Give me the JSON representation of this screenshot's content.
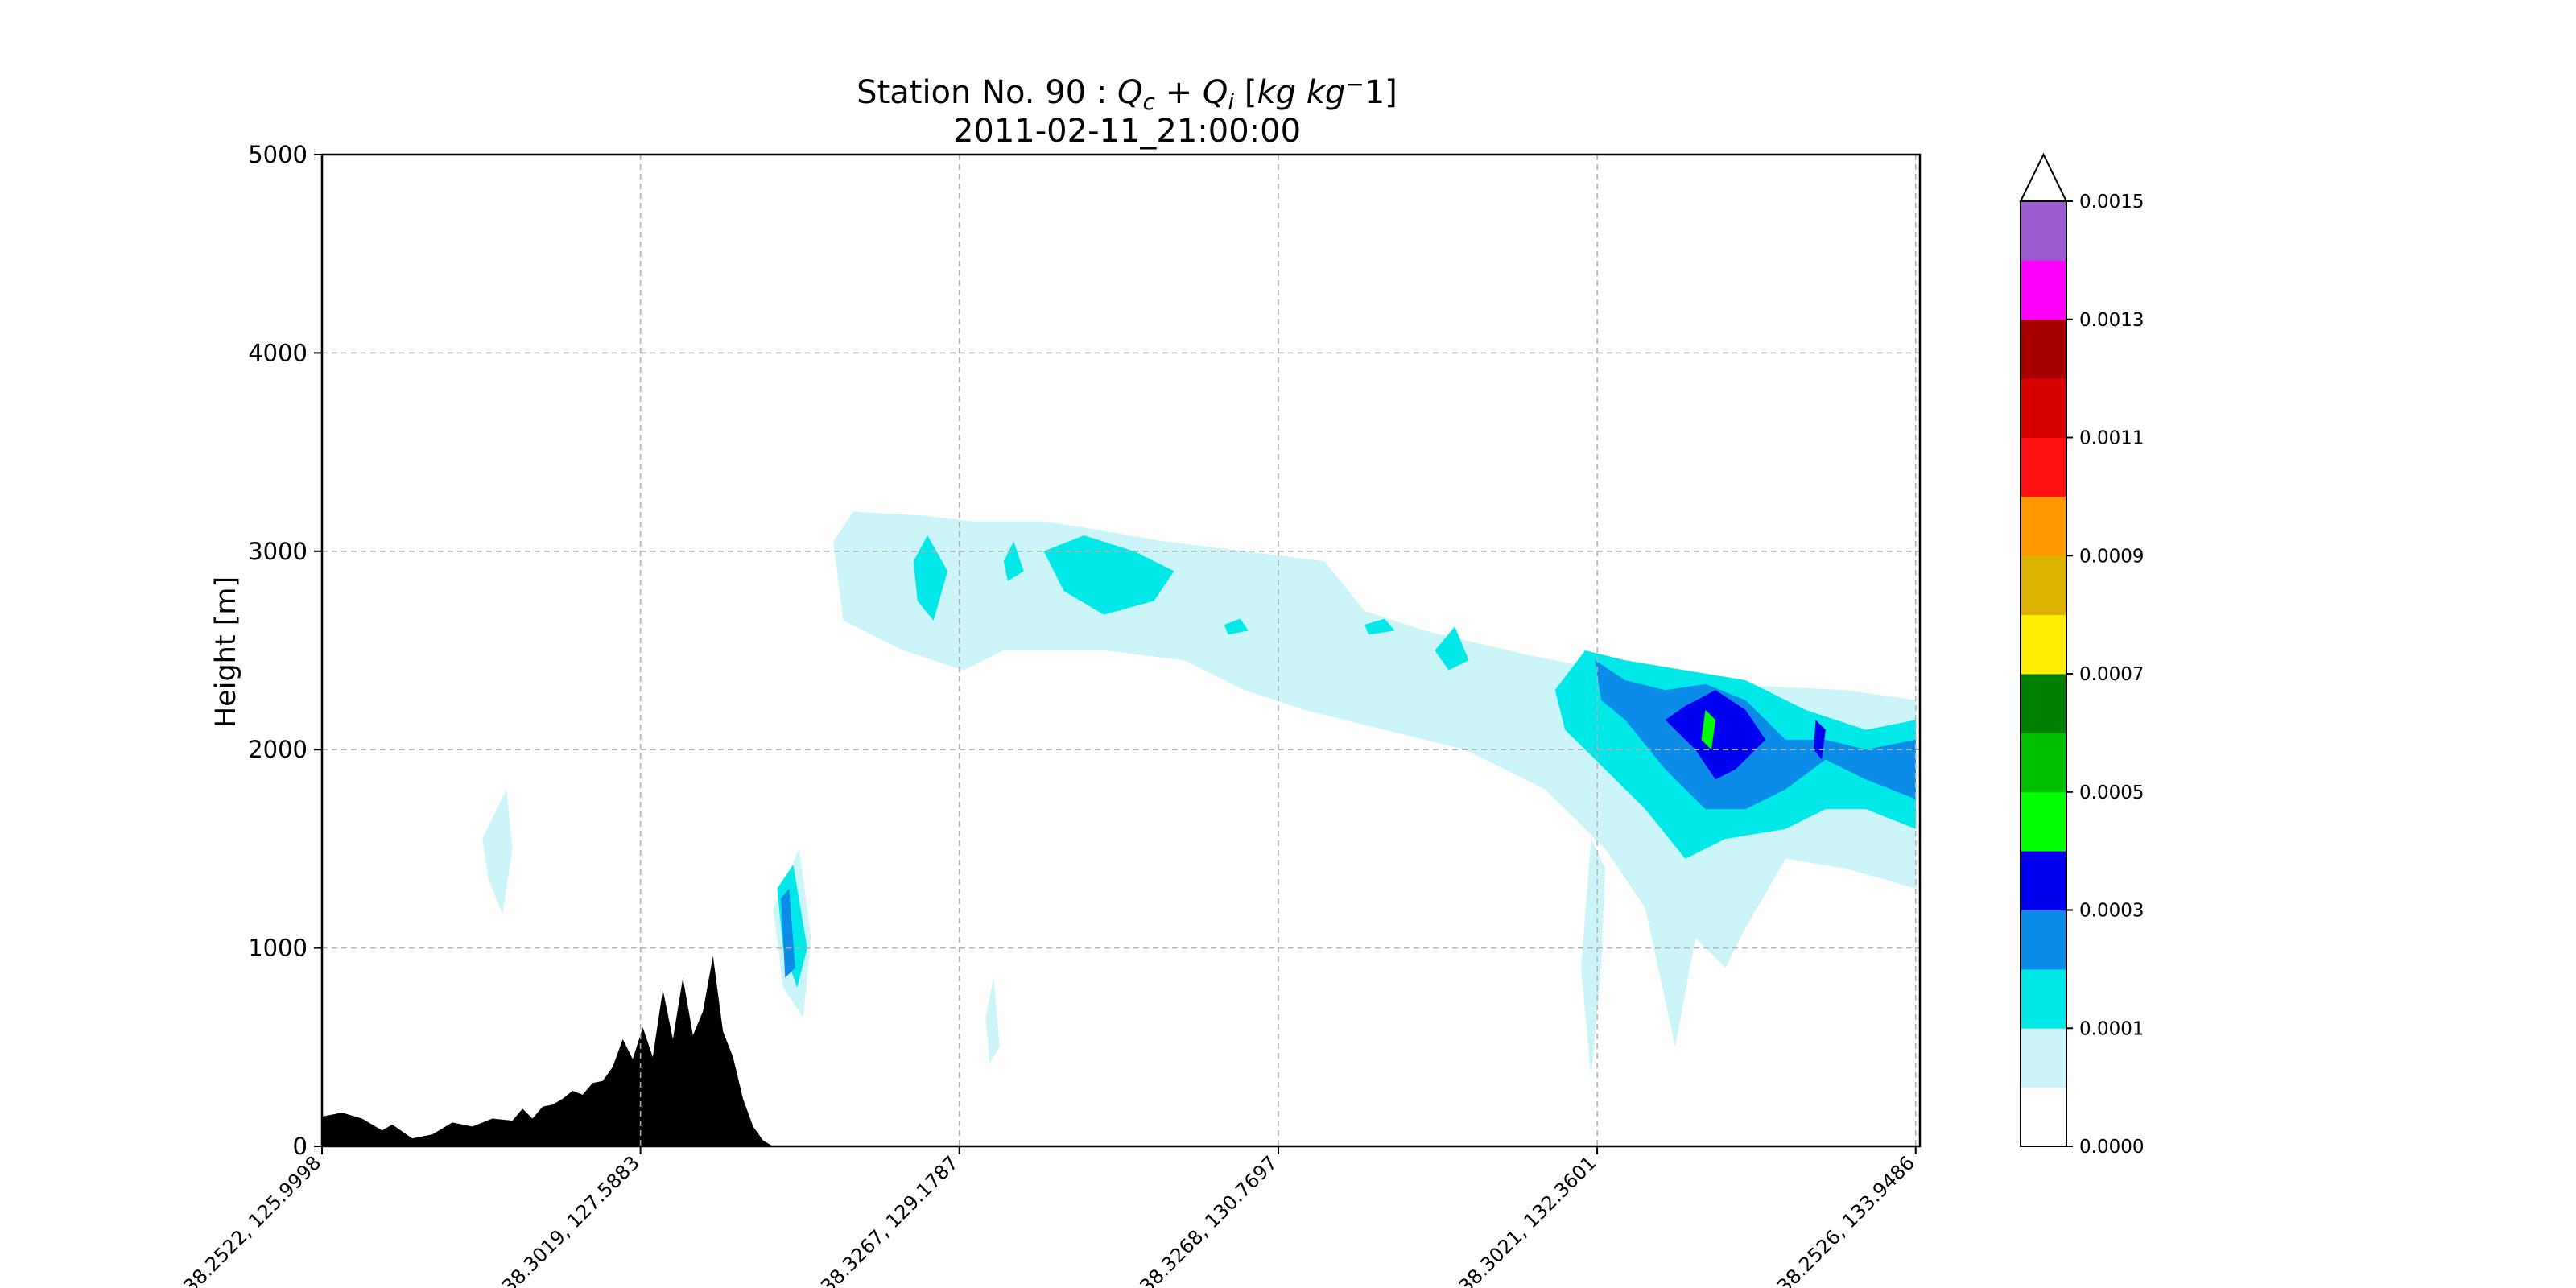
{
  "chart_data": {
    "type": "heatmap",
    "title": "Station No. 90 : Qc + Qi [kg kg⁻1]",
    "title_parts": {
      "prefix": "Station No. 90 : ",
      "q1": "Q",
      "q1_sub": "c",
      "plus": " + ",
      "q2": "Q",
      "q2_sub": "i",
      "units_open": " [",
      "units": "kg kg",
      "units_sup": "−",
      "units_close": "1]"
    },
    "subtitle": "2011-02-11_21:00:00",
    "ylabel": "Height [m]",
    "xlabel": "",
    "ylim": [
      0,
      5000
    ],
    "yticks": [
      "0",
      "1000",
      "2000",
      "3000",
      "4000",
      "5000"
    ],
    "xticks": [
      "38.2522, 125.9998",
      "38.3019, 127.5883",
      "38.3267, 129.1787",
      "38.3268, 130.7697",
      "38.3021, 132.3601",
      "38.2526, 133.9486"
    ],
    "xtick_positions": [
      0,
      1.5885,
      3.1789,
      4.7699,
      6.3603,
      7.9488
    ],
    "xlim": [
      0,
      7.97
    ],
    "grid": true,
    "colorbar": {
      "levels": [
        "0.0000",
        "0.0001",
        "0.0003",
        "0.0005",
        "0.0007",
        "0.0009",
        "0.0011",
        "0.0013",
        "0.0015"
      ],
      "level_values": [
        0,
        0.0001,
        0.0003,
        0.0005,
        0.0007,
        0.0009,
        0.0011,
        0.0013,
        0.0015
      ],
      "colors": [
        "#ffffff",
        "#ccf5fa",
        "#00e8e8",
        "#0a8ce8",
        "#0000f0",
        "#00ff00",
        "#00c000",
        "#008000",
        "#ffee00",
        "#dcb200",
        "#ff9900",
        "#ff1010",
        "#d80000",
        "#a80000",
        "#ff00ff",
        "#9a5ad0"
      ],
      "extend": "max"
    },
    "terrain": {
      "color": "#000000",
      "x": [
        0,
        0.1,
        0.2,
        0.3,
        0.35,
        0.45,
        0.55,
        0.65,
        0.75,
        0.85,
        0.95,
        1.0,
        1.05,
        1.1,
        1.15,
        1.2,
        1.25,
        1.3,
        1.35,
        1.4,
        1.45,
        1.5,
        1.55,
        1.6,
        1.65,
        1.7,
        1.75,
        1.8,
        1.85,
        1.9,
        1.95,
        2.0,
        2.05,
        2.1,
        2.15,
        2.2,
        2.25,
        2.3,
        2.35,
        2.4,
        2.45,
        2.5,
        2.55
      ],
      "y": [
        150,
        170,
        140,
        80,
        110,
        40,
        60,
        120,
        100,
        140,
        130,
        190,
        140,
        200,
        210,
        240,
        280,
        260,
        320,
        330,
        400,
        540,
        440,
        600,
        450,
        790,
        540,
        850,
        560,
        680,
        960,
        580,
        450,
        240,
        100,
        30,
        0,
        0,
        0,
        0,
        0,
        0,
        0
      ]
    },
    "regions": [
      {
        "level": 1,
        "value": 5e-05,
        "points": [
          [
            0.8,
            1550
          ],
          [
            0.92,
            1800
          ],
          [
            0.95,
            1500
          ],
          [
            0.9,
            1170
          ],
          [
            0.83,
            1350
          ]
        ]
      },
      {
        "level": 1,
        "value": 5e-05,
        "points": [
          [
            2.55,
            3050
          ],
          [
            2.65,
            3200
          ],
          [
            3.0,
            3180
          ],
          [
            3.25,
            3150
          ],
          [
            3.6,
            3150
          ],
          [
            3.8,
            3120
          ],
          [
            4.2,
            3050
          ],
          [
            4.6,
            3000
          ],
          [
            5.0,
            2950
          ],
          [
            5.2,
            2700
          ],
          [
            5.5,
            2600
          ],
          [
            6.0,
            2480
          ],
          [
            6.4,
            2400
          ],
          [
            6.8,
            2350
          ],
          [
            7.2,
            2320
          ],
          [
            7.6,
            2300
          ],
          [
            7.95,
            2250
          ],
          [
            7.95,
            1300
          ],
          [
            7.6,
            1400
          ],
          [
            7.3,
            1450
          ],
          [
            7.1,
            1100
          ],
          [
            7.0,
            900
          ],
          [
            6.85,
            1050
          ],
          [
            6.75,
            500
          ],
          [
            6.6,
            1200
          ],
          [
            6.4,
            1500
          ],
          [
            6.1,
            1800
          ],
          [
            5.7,
            2000
          ],
          [
            5.3,
            2100
          ],
          [
            4.9,
            2200
          ],
          [
            4.6,
            2300
          ],
          [
            4.3,
            2450
          ],
          [
            3.9,
            2500
          ],
          [
            3.4,
            2500
          ],
          [
            3.2,
            2400
          ],
          [
            2.9,
            2500
          ],
          [
            2.6,
            2650
          ]
        ]
      },
      {
        "level": 1,
        "value": 5e-05,
        "points": [
          [
            2.25,
            1200
          ],
          [
            2.38,
            1500
          ],
          [
            2.44,
            1050
          ],
          [
            2.4,
            650
          ],
          [
            2.3,
            800
          ]
        ]
      },
      {
        "level": 1,
        "value": 5e-05,
        "points": [
          [
            3.35,
            850
          ],
          [
            3.38,
            500
          ],
          [
            3.33,
            420
          ],
          [
            3.31,
            650
          ]
        ]
      },
      {
        "level": 1,
        "value": 5e-05,
        "points": [
          [
            6.33,
            1550
          ],
          [
            6.4,
            1400
          ],
          [
            6.38,
            900
          ],
          [
            6.33,
            350
          ],
          [
            6.28,
            900
          ]
        ]
      },
      {
        "level": 2,
        "value": 0.0002,
        "points": [
          [
            2.95,
            2950
          ],
          [
            3.02,
            3080
          ],
          [
            3.12,
            2900
          ],
          [
            3.05,
            2650
          ],
          [
            2.97,
            2750
          ]
        ]
      },
      {
        "level": 2,
        "value": 0.0002,
        "points": [
          [
            3.4,
            2950
          ],
          [
            3.45,
            3050
          ],
          [
            3.5,
            2900
          ],
          [
            3.42,
            2850
          ]
        ]
      },
      {
        "level": 2,
        "value": 0.0002,
        "points": [
          [
            3.6,
            3000
          ],
          [
            3.8,
            3080
          ],
          [
            4.05,
            3000
          ],
          [
            4.25,
            2900
          ],
          [
            4.15,
            2750
          ],
          [
            3.9,
            2680
          ],
          [
            3.7,
            2800
          ]
        ]
      },
      {
        "level": 2,
        "value": 0.0002,
        "points": [
          [
            4.5,
            2630
          ],
          [
            4.58,
            2660
          ],
          [
            4.62,
            2600
          ],
          [
            4.52,
            2580
          ]
        ]
      },
      {
        "level": 2,
        "value": 0.0002,
        "points": [
          [
            5.2,
            2630
          ],
          [
            5.3,
            2660
          ],
          [
            5.35,
            2600
          ],
          [
            5.22,
            2580
          ]
        ]
      },
      {
        "level": 2,
        "value": 0.0002,
        "points": [
          [
            5.55,
            2500
          ],
          [
            5.65,
            2620
          ],
          [
            5.72,
            2450
          ],
          [
            5.62,
            2400
          ]
        ]
      },
      {
        "level": 2,
        "value": 0.0002,
        "points": [
          [
            6.15,
            2300
          ],
          [
            6.3,
            2500
          ],
          [
            6.5,
            2450
          ],
          [
            6.8,
            2400
          ],
          [
            7.1,
            2350
          ],
          [
            7.4,
            2200
          ],
          [
            7.7,
            2100
          ],
          [
            7.95,
            2150
          ],
          [
            7.95,
            1600
          ],
          [
            7.7,
            1700
          ],
          [
            7.5,
            1700
          ],
          [
            7.3,
            1600
          ],
          [
            7.0,
            1550
          ],
          [
            6.8,
            1450
          ],
          [
            6.6,
            1700
          ],
          [
            6.4,
            1900
          ],
          [
            6.2,
            2100
          ]
        ]
      },
      {
        "level": 2,
        "value": 0.0002,
        "points": [
          [
            2.27,
            1300
          ],
          [
            2.35,
            1420
          ],
          [
            2.42,
            1000
          ],
          [
            2.37,
            800
          ],
          [
            2.3,
            1000
          ]
        ]
      },
      {
        "level": 3,
        "value": 0.0004,
        "points": [
          [
            6.35,
            2450
          ],
          [
            6.5,
            2350
          ],
          [
            6.7,
            2300
          ],
          [
            6.9,
            2330
          ],
          [
            7.1,
            2250
          ],
          [
            7.3,
            2050
          ],
          [
            7.5,
            2050
          ],
          [
            7.7,
            2000
          ],
          [
            7.95,
            2050
          ],
          [
            7.95,
            1750
          ],
          [
            7.7,
            1850
          ],
          [
            7.5,
            1950
          ],
          [
            7.3,
            1800
          ],
          [
            7.1,
            1700
          ],
          [
            6.9,
            1700
          ],
          [
            6.7,
            1900
          ],
          [
            6.5,
            2150
          ],
          [
            6.38,
            2250
          ]
        ]
      },
      {
        "level": 3,
        "value": 0.0004,
        "points": [
          [
            2.29,
            1250
          ],
          [
            2.33,
            1300
          ],
          [
            2.36,
            900
          ],
          [
            2.31,
            850
          ]
        ]
      },
      {
        "level": 4,
        "value": 0.0006,
        "points": [
          [
            6.8,
            2220
          ],
          [
            6.95,
            2300
          ],
          [
            7.1,
            2200
          ],
          [
            7.2,
            2050
          ],
          [
            7.05,
            1900
          ],
          [
            6.95,
            1850
          ],
          [
            6.85,
            2000
          ],
          [
            6.7,
            2150
          ]
        ]
      },
      {
        "level": 4,
        "value": 0.0006,
        "points": [
          [
            7.45,
            2150
          ],
          [
            7.5,
            2100
          ],
          [
            7.48,
            1950
          ],
          [
            7.44,
            2000
          ]
        ]
      },
      {
        "level": 5,
        "value": 0.0008,
        "points": [
          [
            6.9,
            2200
          ],
          [
            6.95,
            2150
          ],
          [
            6.93,
            2000
          ],
          [
            6.88,
            2050
          ]
        ]
      }
    ]
  }
}
